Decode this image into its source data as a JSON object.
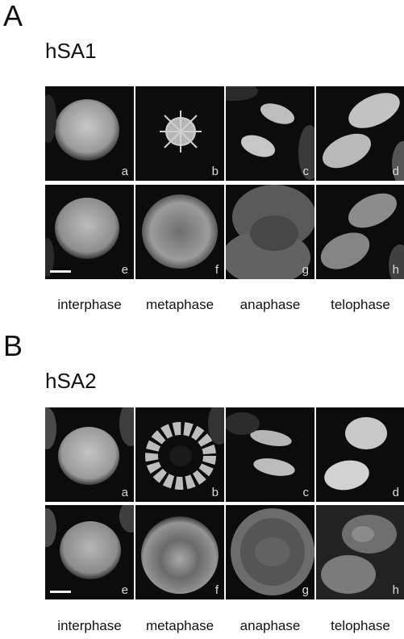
{
  "figure": {
    "panels": [
      {
        "letter": "A",
        "title": "hSA1",
        "cell_labels": [
          "a",
          "b",
          "c",
          "d",
          "e",
          "f",
          "g",
          "h"
        ],
        "phases": [
          "interphase",
          "metaphase",
          "anaphase",
          "telophase"
        ]
      },
      {
        "letter": "B",
        "title": "hSA2",
        "cell_labels": [
          "a",
          "b",
          "c",
          "d",
          "e",
          "f",
          "g",
          "h"
        ],
        "phases": [
          "interphase",
          "metaphase",
          "anaphase",
          "telophase"
        ]
      }
    ]
  }
}
